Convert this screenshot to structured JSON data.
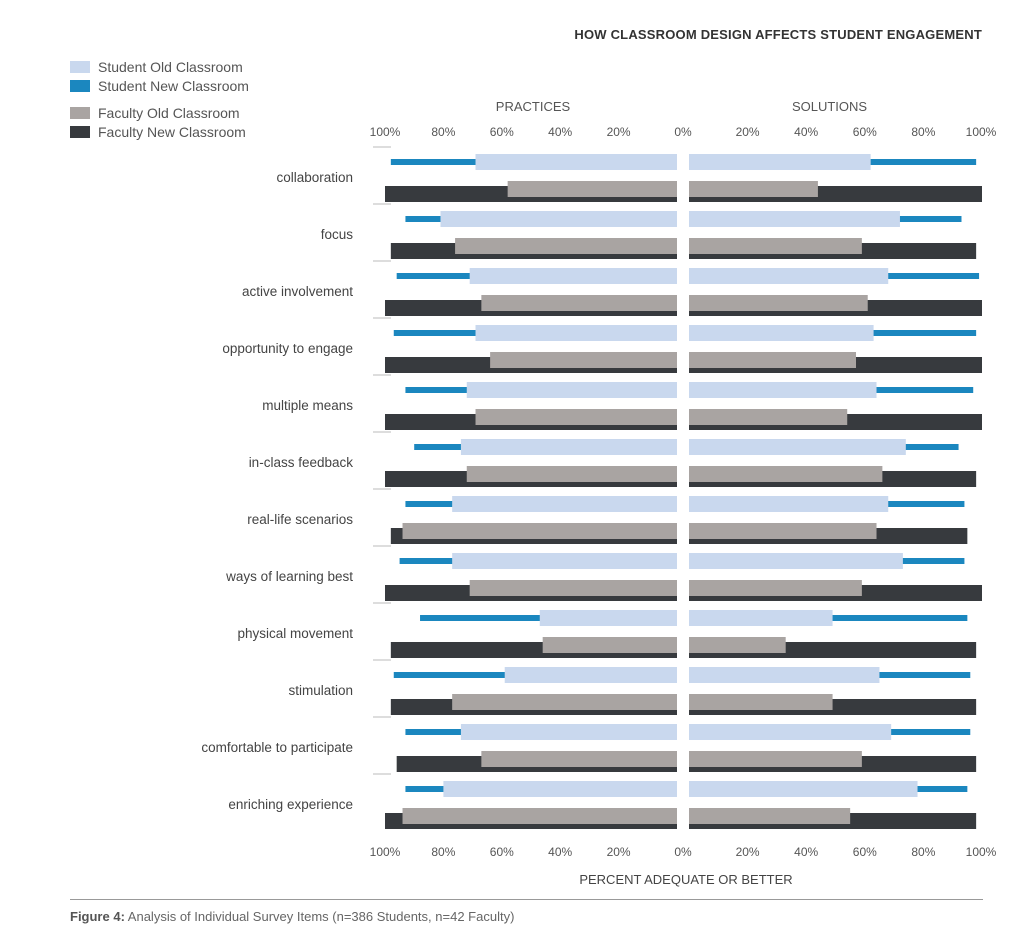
{
  "title": "HOW CLASSROOM DESIGN AFFECTS STUDENT ENGAGEMENT",
  "caption": {
    "label": "Figure 4:",
    "text": " Analysis of Individual Survey Items (n=386 Students, n=42 Faculty)"
  },
  "legend": [
    {
      "name": "Student Old Classroom",
      "color": "#c9d8ee"
    },
    {
      "name": "Student New Classroom",
      "color": "#1b87bf"
    },
    {
      "name": "Faculty Old Classroom",
      "color": "#a9a4a2"
    },
    {
      "name": "Faculty New Classroom",
      "color": "#373a3e"
    }
  ],
  "chart_data": {
    "type": "bar",
    "orientation": "horizontal-diverging",
    "panels": [
      "PRACTICES",
      "SOLUTIONS"
    ],
    "xlabel": "PERCENT ADEQUATE OR BETTER",
    "left_ticks": [
      "100%",
      "80%",
      "60%",
      "40%",
      "20%",
      "0%"
    ],
    "right_ticks": [
      "20%",
      "40%",
      "60%",
      "80%",
      "100%"
    ],
    "xlim": [
      0,
      100
    ],
    "categories": [
      "collaboration",
      "focus",
      "active involvement",
      "opportunity to engage",
      "multiple means",
      "in-class feedback",
      "real-life scenarios",
      "ways of learning best",
      "physical movement",
      "stimulation",
      "comfortable to participate",
      "enriching experience"
    ],
    "series": [
      {
        "name": "Student Old Classroom",
        "practices": [
          69,
          81,
          71,
          69,
          72,
          74,
          77,
          77,
          47,
          59,
          74,
          80
        ],
        "solutions": [
          62,
          72,
          68,
          63,
          64,
          74,
          68,
          73,
          49,
          65,
          69,
          78
        ]
      },
      {
        "name": "Student New Classroom",
        "practices": [
          98,
          93,
          96,
          97,
          93,
          90,
          93,
          95,
          88,
          97,
          93,
          93
        ],
        "solutions": [
          98,
          93,
          99,
          98,
          97,
          92,
          94,
          94,
          95,
          96,
          96,
          95
        ]
      },
      {
        "name": "Faculty Old Classroom",
        "practices": [
          58,
          76,
          67,
          64,
          69,
          72,
          94,
          71,
          46,
          77,
          67,
          94
        ],
        "solutions": [
          44,
          59,
          61,
          57,
          54,
          66,
          64,
          59,
          33,
          49,
          59,
          55
        ]
      },
      {
        "name": "Faculty New Classroom",
        "practices": [
          100,
          98,
          100,
          100,
          100,
          100,
          98,
          100,
          98,
          98,
          96,
          100
        ],
        "solutions": [
          100,
          98,
          100,
          100,
          100,
          98,
          95,
          100,
          98,
          98,
          98,
          98
        ]
      }
    ]
  }
}
